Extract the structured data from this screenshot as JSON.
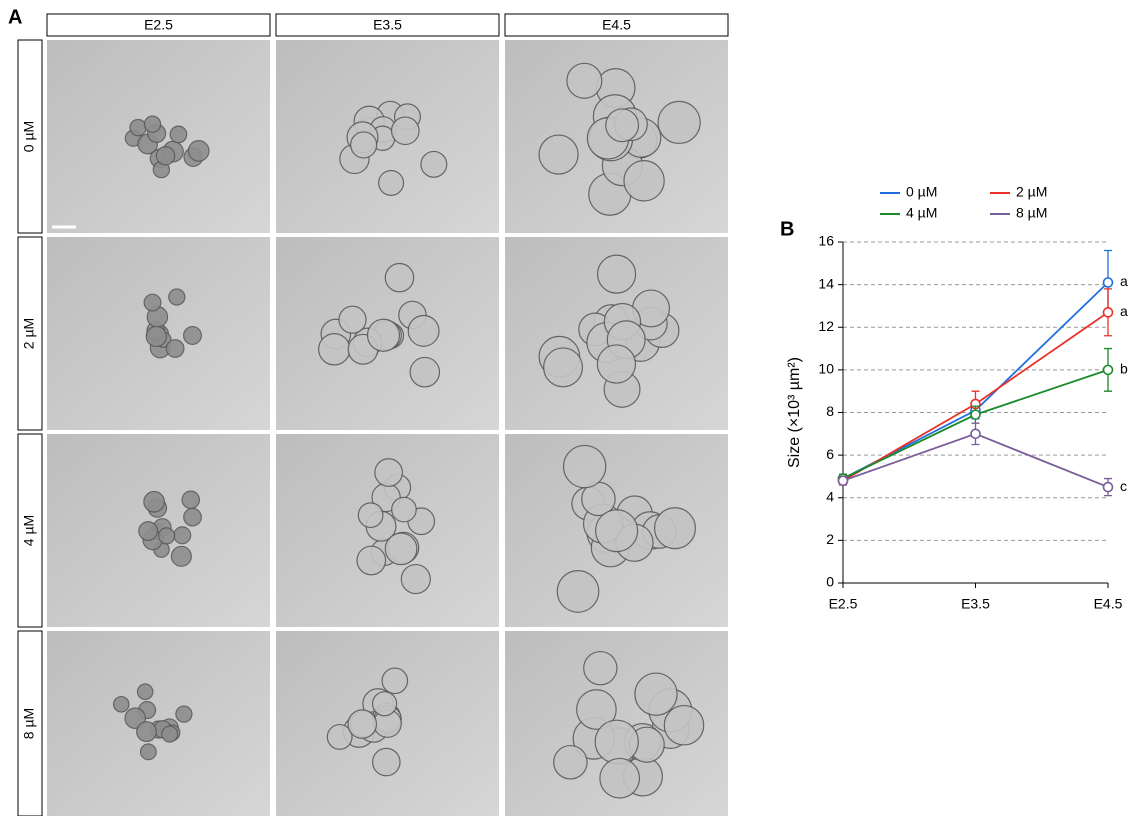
{
  "panel_a": {
    "label": "A",
    "columns": [
      "E2.5",
      "E3.5",
      "E4.5"
    ],
    "rows": [
      "0 µM",
      "2 µM",
      "4 µM",
      "8 µM"
    ]
  },
  "chart_data": {
    "type": "line",
    "label": "B",
    "ylabel": "Size (×10³ µm²)",
    "categories": [
      "E2.5",
      "E3.5",
      "E4.5"
    ],
    "ylim": [
      0,
      16
    ],
    "yticks": [
      0,
      2,
      4,
      6,
      8,
      10,
      12,
      14,
      16
    ],
    "grid": true,
    "series": [
      {
        "name": "0 µM",
        "color": "#1f6fe0",
        "values": [
          4.9,
          8.1,
          14.1
        ],
        "errors": [
          0.2,
          0.4,
          1.5
        ],
        "annotation": "a"
      },
      {
        "name": "2 µM",
        "color": "#e8322a",
        "values": [
          4.8,
          8.4,
          12.7
        ],
        "errors": [
          0.2,
          0.6,
          1.1
        ],
        "annotation": "a"
      },
      {
        "name": "4 µM",
        "color": "#1a8a2a",
        "values": [
          4.9,
          7.9,
          10.0
        ],
        "errors": [
          0.2,
          0.4,
          1.0
        ],
        "annotation": "b"
      },
      {
        "name": "8 µM",
        "color": "#7a5c99",
        "values": [
          4.8,
          7.0,
          4.5
        ],
        "errors": [
          0.2,
          0.5,
          0.4
        ],
        "annotation": "c"
      }
    ]
  }
}
